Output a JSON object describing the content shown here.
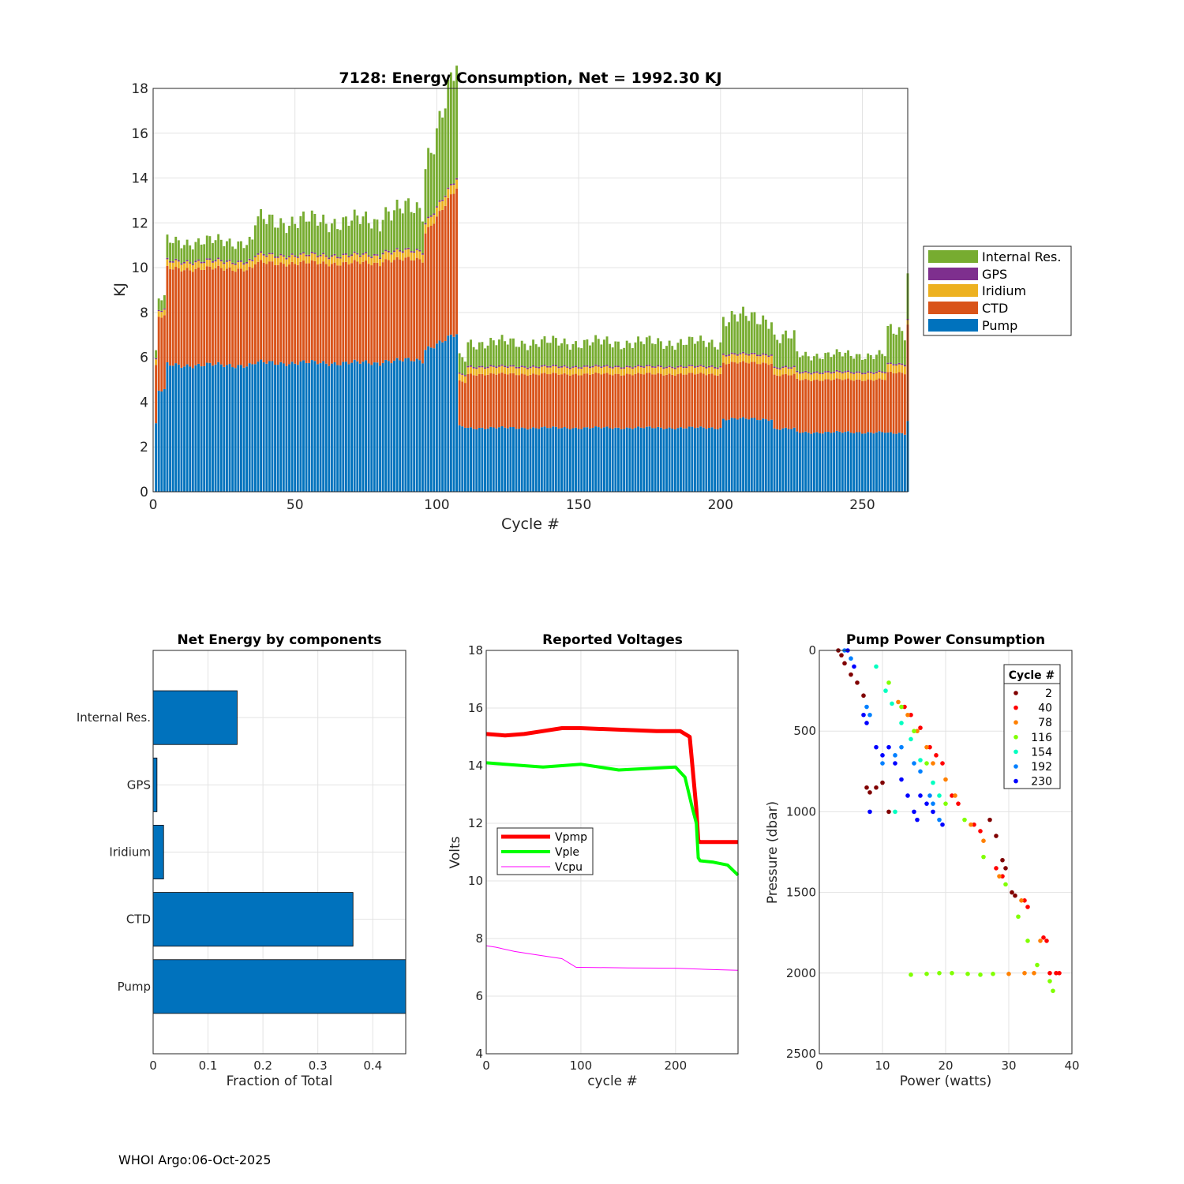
{
  "footer": "WHOI Argo:06-Oct-2025",
  "colors": {
    "pump": "#0072BD",
    "ctd": "#D95319",
    "iridium": "#EDB120",
    "gps": "#7E2F8E",
    "internal": "#77AC30",
    "vpmp": "#FF0000",
    "vple": "#00FF00",
    "vcpu": "#FF00FF"
  },
  "chart_data": [
    {
      "id": "energy",
      "type": "bar",
      "stacked": true,
      "title": "7128: Energy Consumption,  Net = 1992.30 KJ",
      "xlabel": "Cycle #",
      "ylabel": "KJ",
      "xlim": [
        0,
        266
      ],
      "ylim": [
        0,
        18
      ],
      "xticks": [
        0,
        50,
        100,
        150,
        200,
        250
      ],
      "yticks": [
        0,
        2,
        4,
        6,
        8,
        10,
        12,
        14,
        16,
        18
      ],
      "legend_position": "outside-right",
      "legend_order": [
        "Internal Res.",
        "GPS",
        "Iridium",
        "CTD",
        "Pump"
      ],
      "segments": [
        {
          "from": 1,
          "to": 1,
          "pump": 3.0,
          "ctd": 2.6,
          "iridium": 0.25,
          "gps": 0.05,
          "internal": 0.3
        },
        {
          "from": 2,
          "to": 4,
          "pump": 4.5,
          "ctd": 3.3,
          "iridium": 0.25,
          "gps": 0.05,
          "internal": 0.5
        },
        {
          "from": 5,
          "to": 35,
          "pump": 5.65,
          "ctd": 4.3,
          "iridium": 0.3,
          "gps": 0.06,
          "internal": 0.85
        },
        {
          "from": 36,
          "to": 80,
          "pump": 5.75,
          "ctd": 4.45,
          "iridium": 0.32,
          "gps": 0.06,
          "internal": 1.5
        },
        {
          "from": 81,
          "to": 95,
          "pump": 5.85,
          "ctd": 4.5,
          "iridium": 0.35,
          "gps": 0.06,
          "internal": 1.8
        },
        {
          "from": 96,
          "to": 107,
          "pump": 6.4,
          "ctd": 5.2,
          "iridium": 0.4,
          "gps": 0.06,
          "internal": 2.7
        },
        {
          "from": 108,
          "to": 110,
          "pump": 2.9,
          "ctd": 2.0,
          "iridium": 0.3,
          "gps": 0.05,
          "internal": 0.7
        },
        {
          "from": 111,
          "to": 200,
          "pump": 2.85,
          "ctd": 2.4,
          "iridium": 0.3,
          "gps": 0.06,
          "internal": 1.05
        },
        {
          "from": 201,
          "to": 218,
          "pump": 3.25,
          "ctd": 2.5,
          "iridium": 0.35,
          "gps": 0.06,
          "internal": 1.6
        },
        {
          "from": 219,
          "to": 226,
          "pump": 2.8,
          "ctd": 2.4,
          "iridium": 0.3,
          "gps": 0.06,
          "internal": 1.3
        },
        {
          "from": 227,
          "to": 258,
          "pump": 2.65,
          "ctd": 2.35,
          "iridium": 0.3,
          "gps": 0.06,
          "internal": 0.75
        },
        {
          "from": 259,
          "to": 265,
          "pump": 2.6,
          "ctd": 2.7,
          "iridium": 0.35,
          "gps": 0.06,
          "internal": 1.4
        },
        {
          "from": 266,
          "to": 266,
          "pump": 3.2,
          "ctd": 4.3,
          "iridium": 0.2,
          "gps": 0.05,
          "internal": 2.3
        }
      ]
    },
    {
      "id": "components",
      "type": "bar",
      "orientation": "horizontal",
      "title": "Net Energy by components",
      "xlabel": "Fraction of Total",
      "ylabel": "",
      "xlim": [
        0,
        0.46
      ],
      "xticks": [
        0,
        0.1,
        0.2,
        0.3,
        0.4
      ],
      "categories": [
        "Internal Res.",
        "GPS",
        "Iridium",
        "CTD",
        "Pump"
      ],
      "values": [
        0.153,
        0.007,
        0.019,
        0.364,
        0.46
      ]
    },
    {
      "id": "voltages",
      "type": "line",
      "title": "Reported Voltages",
      "xlabel": "cycle #",
      "ylabel": "Volts",
      "xlim": [
        0,
        266
      ],
      "ylim": [
        4,
        18
      ],
      "xticks": [
        0,
        100,
        200
      ],
      "yticks": [
        4,
        6,
        8,
        10,
        12,
        14,
        16,
        18
      ],
      "legend_position": "left-middle",
      "series": [
        {
          "name": "Vpmp",
          "x": [
            0,
            20,
            40,
            60,
            80,
            100,
            140,
            180,
            205,
            215,
            222,
            224,
            226,
            266
          ],
          "y": [
            15.1,
            15.05,
            15.1,
            15.2,
            15.3,
            15.3,
            15.25,
            15.2,
            15.2,
            15.0,
            12.5,
            11.4,
            11.35,
            11.35
          ]
        },
        {
          "name": "Vple",
          "x": [
            0,
            20,
            40,
            60,
            80,
            100,
            140,
            170,
            200,
            210,
            218,
            222,
            224,
            226,
            240,
            255,
            266
          ],
          "y": [
            14.1,
            14.05,
            14.0,
            13.95,
            14.0,
            14.05,
            13.85,
            13.9,
            13.95,
            13.6,
            12.5,
            12.0,
            10.8,
            10.7,
            10.65,
            10.55,
            10.2
          ]
        },
        {
          "name": "Vcpu",
          "x": [
            0,
            10,
            30,
            50,
            80,
            90,
            95,
            100,
            150,
            200,
            240,
            266
          ],
          "y": [
            7.75,
            7.7,
            7.55,
            7.45,
            7.3,
            7.1,
            7.0,
            7.0,
            6.98,
            6.97,
            6.92,
            6.9
          ]
        }
      ]
    },
    {
      "id": "pump_power",
      "type": "scatter",
      "title": "Pump Power Consumption",
      "xlabel": "Power (watts)",
      "ylabel": "Pressure (dbar)",
      "xlim": [
        0,
        40
      ],
      "ylim": [
        0,
        2500
      ],
      "y_reversed": true,
      "xticks": [
        0,
        10,
        20,
        30,
        40
      ],
      "yticks": [
        0,
        500,
        1000,
        1500,
        2000,
        2500
      ],
      "legend_title": "Cycle #",
      "legend_position": "top-right",
      "series": [
        {
          "name": "2",
          "color": "#800000",
          "x": [
            3.0,
            3.5,
            4.0,
            5.0,
            6.0,
            7.0,
            7.5,
            8.0,
            9.0,
            10.0,
            11.0,
            27.0,
            28.0,
            29.0,
            29.5,
            30.5,
            31.0
          ],
          "y": [
            0,
            30,
            80,
            150,
            200,
            280,
            850,
            880,
            850,
            820,
            1000,
            1050,
            1150,
            1300,
            1350,
            1500,
            1520
          ]
        },
        {
          "name": "40",
          "color": "#FF0000",
          "x": [
            13.5,
            14.5,
            16.0,
            17.5,
            18.5,
            19.5,
            21.0,
            22.0,
            24.5,
            25.5,
            28.0,
            29.0,
            32.5,
            33.0,
            35.5,
            36.0,
            36.5,
            37.5,
            38.0
          ],
          "y": [
            350,
            400,
            480,
            600,
            650,
            700,
            900,
            950,
            1080,
            1120,
            1350,
            1400,
            1550,
            1590,
            1780,
            1800,
            2000,
            2000,
            2000
          ]
        },
        {
          "name": "78",
          "color": "#FF8000",
          "x": [
            12.5,
            14.0,
            15.5,
            17.0,
            18.0,
            20.0,
            21.5,
            24.0,
            26.0,
            28.5,
            32.0,
            35.0,
            30.0,
            32.5,
            34.0
          ],
          "y": [
            320,
            400,
            500,
            600,
            700,
            800,
            900,
            1080,
            1180,
            1400,
            1550,
            1800,
            2005,
            2000,
            2000
          ]
        },
        {
          "name": "116",
          "color": "#80FF00",
          "x": [
            11.0,
            13.0,
            15.0,
            17.0,
            20.0,
            23.0,
            26.0,
            29.5,
            31.5,
            33.0,
            34.5,
            36.5,
            37.0,
            14.5,
            17.0,
            19.0,
            21.0,
            23.5,
            25.5,
            27.5
          ],
          "y": [
            200,
            350,
            500,
            700,
            950,
            1050,
            1280,
            1450,
            1650,
            1800,
            1950,
            2050,
            2110,
            2010,
            2005,
            2000,
            2000,
            2005,
            2010,
            2005
          ]
        },
        {
          "name": "154",
          "color": "#00FFC0",
          "x": [
            9.0,
            10.5,
            11.5,
            13.0,
            14.5,
            16.0,
            18.0,
            19.0,
            12.0
          ],
          "y": [
            100,
            250,
            330,
            450,
            550,
            680,
            820,
            900,
            1000
          ]
        },
        {
          "name": "192",
          "color": "#0080FF",
          "x": [
            4.0,
            5.0,
            7.5,
            8.0,
            10.0,
            12.0,
            13.0,
            15.0,
            16.0,
            17.5,
            18.0,
            19.0
          ],
          "y": [
            0,
            50,
            350,
            400,
            700,
            650,
            600,
            700,
            750,
            900,
            950,
            1050
          ]
        },
        {
          "name": "230",
          "color": "#0000FF",
          "x": [
            4.5,
            5.5,
            7.0,
            7.5,
            9.0,
            10.0,
            11.0,
            12.0,
            13.0,
            14.0,
            15.0,
            15.5,
            16.0,
            17.0,
            18.0,
            19.5,
            8.0
          ],
          "y": [
            0,
            100,
            400,
            450,
            600,
            650,
            600,
            700,
            800,
            900,
            1000,
            1050,
            900,
            950,
            1000,
            1080,
            1000
          ]
        }
      ]
    }
  ]
}
